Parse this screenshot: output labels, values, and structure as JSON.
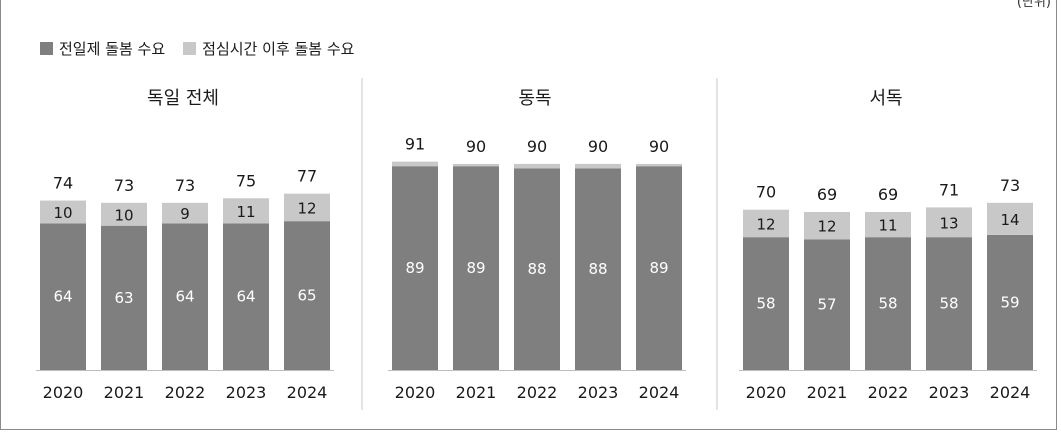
{
  "unit_label": "(단위)",
  "legend": [
    {
      "label": "전일제 돌봄 수요",
      "color": "#7f7f7f"
    },
    {
      "label": "점심시간 이후 돌봄 수요",
      "color": "#c8c8c8"
    }
  ],
  "colors": {
    "bottom": "#7f7f7f",
    "top": "#c8c8c8",
    "label_on_bottom": "#ffffff",
    "label_on_top": "#1a1a1a"
  },
  "chart_data": [
    {
      "type": "bar",
      "stacked": true,
      "title": "독일 전체",
      "categories": [
        "2020",
        "2021",
        "2022",
        "2023",
        "2024"
      ],
      "series": [
        {
          "name": "전일제 돌봄 수요",
          "values": [
            64,
            63,
            64,
            64,
            65
          ]
        },
        {
          "name": "점심시간 이후 돌봄 수요",
          "values": [
            10,
            10,
            9,
            11,
            12
          ]
        }
      ],
      "totals": [
        74,
        73,
        73,
        75,
        77
      ]
    },
    {
      "type": "bar",
      "stacked": true,
      "title": "동독",
      "categories": [
        "2020",
        "2021",
        "2022",
        "2023",
        "2024"
      ],
      "series": [
        {
          "name": "전일제 돌봄 수요",
          "values": [
            89,
            89,
            88,
            88,
            89
          ]
        },
        {
          "name": "점심시간 이후 돌봄 수요",
          "values": [
            2,
            1,
            2,
            2,
            1
          ]
        }
      ],
      "totals": [
        91,
        90,
        90,
        90,
        90
      ],
      "show_top_labels": false
    },
    {
      "type": "bar",
      "stacked": true,
      "title": "서독",
      "categories": [
        "2020",
        "2021",
        "2022",
        "2023",
        "2024"
      ],
      "series": [
        {
          "name": "전일제 돌봄 수요",
          "values": [
            58,
            57,
            58,
            58,
            59
          ]
        },
        {
          "name": "점심시간 이후 돌봄 수요",
          "values": [
            12,
            12,
            11,
            13,
            14
          ]
        }
      ],
      "totals": [
        70,
        69,
        69,
        71,
        73
      ]
    }
  ]
}
